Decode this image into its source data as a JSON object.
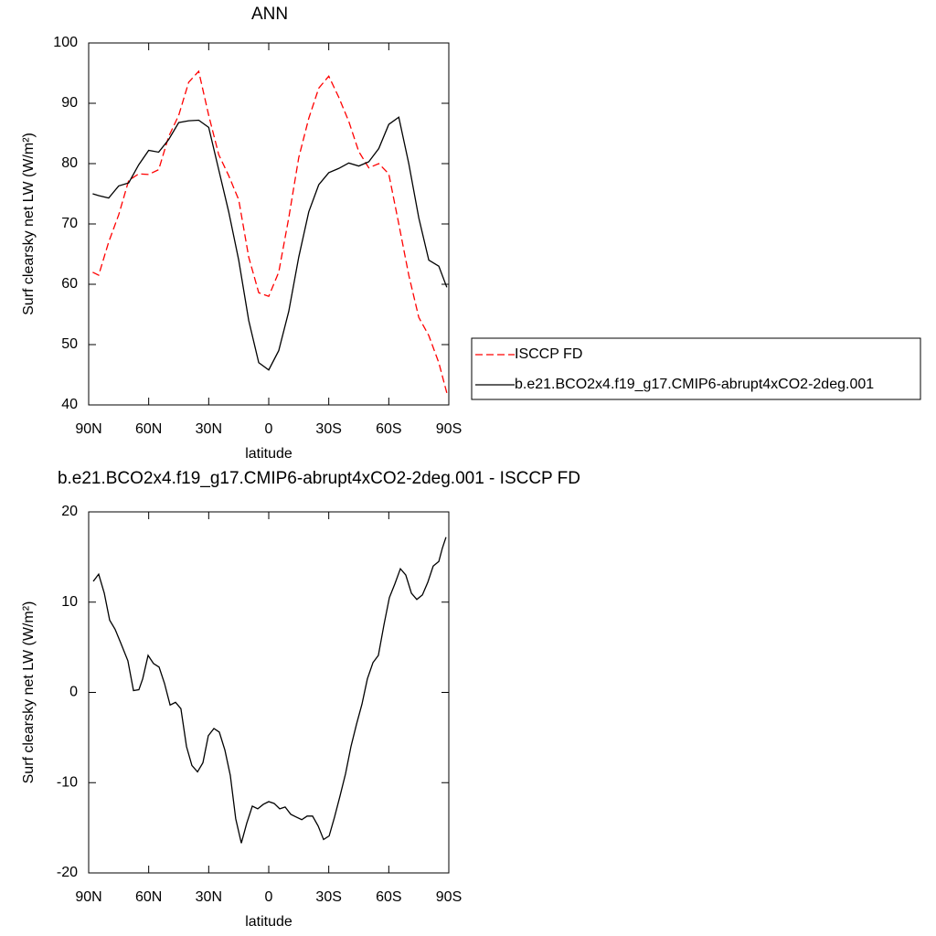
{
  "chart_data": [
    {
      "type": "line",
      "title": "ANN",
      "x_label": "latitude",
      "y_label": "Surf clearsky net LW (W/m²)",
      "x": [
        88,
        85,
        80,
        75,
        70,
        65,
        60,
        55,
        50,
        45,
        40,
        35,
        30,
        25,
        20,
        15,
        10,
        5,
        0,
        -5,
        -10,
        -15,
        -20,
        -25,
        -30,
        -35,
        -40,
        -45,
        -50,
        -55,
        -60,
        -65,
        -70,
        -75,
        -80,
        -85,
        -89
      ],
      "xlim": [
        90,
        -90
      ],
      "xticks": [
        {
          "value": 90,
          "label": "90N"
        },
        {
          "value": 60,
          "label": "60N"
        },
        {
          "value": 30,
          "label": "30N"
        },
        0,
        {
          "value": -30,
          "label": "30S"
        },
        {
          "value": -60,
          "label": "60S"
        },
        {
          "value": -90,
          "label": "90S"
        }
      ],
      "ylim": [
        40,
        100
      ],
      "yticks": [
        40,
        50,
        60,
        70,
        80,
        90,
        100
      ],
      "legend": "right",
      "series": [
        {
          "name": "ISCCP FD",
          "color": "#ff0000",
          "line_style": "dashed",
          "values": [
            62,
            61.5,
            67,
            71.5,
            77.2,
            78.3,
            78.2,
            79,
            84.5,
            88,
            93.5,
            95.3,
            88,
            81.5,
            78,
            74,
            64.5,
            58.6,
            58,
            62,
            71,
            81,
            87.5,
            92.5,
            94.5,
            91,
            87,
            82,
            79.3,
            80,
            78.3,
            70,
            61.5,
            54.5,
            51.5,
            47,
            42
          ]
        },
        {
          "name": "b.e21.BCO2x4.f19_g17.CMIP6-abrupt4xCO2-2deg.001",
          "color": "#000000",
          "line_style": "solid",
          "values": [
            75,
            74.7,
            74.3,
            76.3,
            76.8,
            79.8,
            82.2,
            81.9,
            84,
            86.8,
            87.1,
            87.2,
            86,
            79,
            72,
            64,
            54,
            47,
            45.8,
            49,
            55.5,
            64.5,
            72,
            76.5,
            78.5,
            79.2,
            80.1,
            79.6,
            80.3,
            82.5,
            86.5,
            87.7,
            80,
            71,
            64,
            63,
            59.5
          ]
        }
      ]
    },
    {
      "type": "line",
      "title": "b.e21.BCO2x4.f19_g17.CMIP6-abrupt4xCO2-2deg.001 - ISCCP FD",
      "x_label": "latitude",
      "y_label": "Surf clearsky net LW (W/m²)",
      "x": [
        87.7,
        85,
        82.2,
        79.5,
        76.8,
        74,
        70.4,
        67.6,
        64.9,
        63,
        60.3,
        57.6,
        54.8,
        52.1,
        49.3,
        46.6,
        43.9,
        41.1,
        38.4,
        35.6,
        32.9,
        30.2,
        27.4,
        24.7,
        21.9,
        19.2,
        16.5,
        13.7,
        11,
        8.2,
        5.5,
        2.7,
        0,
        -2.7,
        -5.5,
        -8.2,
        -11,
        -13.7,
        -16.5,
        -19.2,
        -21.9,
        -24.7,
        -27.4,
        -30.2,
        -32.9,
        -35.6,
        -38.4,
        -41.1,
        -43.9,
        -46.6,
        -49.3,
        -52.1,
        -54.8,
        -57.6,
        -60.3,
        -63,
        -65.8,
        -68.5,
        -71.3,
        -74,
        -76.8,
        -79.5,
        -82.2,
        -85,
        -86.8,
        -88.6
      ],
      "xlim": [
        90,
        -90
      ],
      "xticks": [
        {
          "value": 90,
          "label": "90N"
        },
        {
          "value": 60,
          "label": "60N"
        },
        {
          "value": 30,
          "label": "30N"
        },
        0,
        {
          "value": -30,
          "label": "30S"
        },
        {
          "value": -60,
          "label": "60S"
        },
        {
          "value": -90,
          "label": "90S"
        }
      ],
      "ylim": [
        -20,
        20
      ],
      "yticks": [
        -20,
        -10,
        0,
        10,
        20
      ],
      "series": [
        {
          "color": "#000000",
          "line_style": "solid",
          "values": [
            12.3,
            13.1,
            11,
            8,
            7,
            5.5,
            3.5,
            0.2,
            0.3,
            1.5,
            4.1,
            3.2,
            2.8,
            1,
            -1.4,
            -1.1,
            -1.8,
            -6,
            -8.1,
            -8.8,
            -7.8,
            -4.8,
            -4,
            -4.4,
            -6.4,
            -9.2,
            -14,
            -16.7,
            -14.5,
            -12.6,
            -12.9,
            -12.4,
            -12.1,
            -12.3,
            -12.9,
            -12.7,
            -13.5,
            -13.8,
            -14.1,
            -13.7,
            -13.7,
            -14.8,
            -16.3,
            -15.9,
            -13.8,
            -11.5,
            -9,
            -6,
            -3.5,
            -1.3,
            1.5,
            3.3,
            4.1,
            7.5,
            10.5,
            12,
            13.7,
            13,
            11,
            10.3,
            10.8,
            12.2,
            14,
            14.5,
            16,
            17.2
          ]
        }
      ]
    }
  ]
}
